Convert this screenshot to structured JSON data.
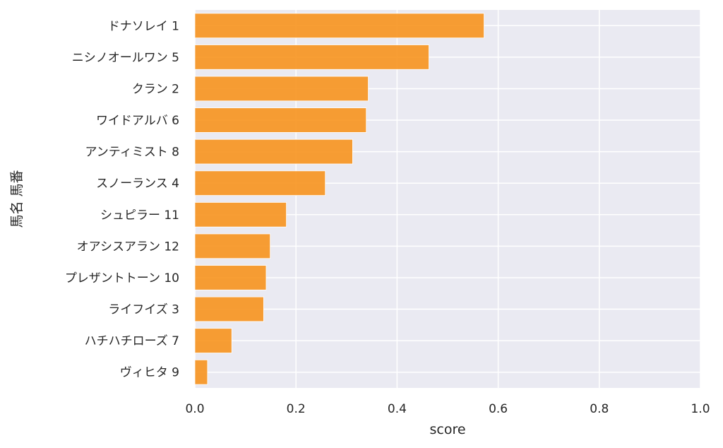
{
  "chart_data": {
    "type": "bar",
    "orientation": "horizontal",
    "xlabel": "score",
    "ylabel": "馬名 馬番",
    "xlim": [
      0.0,
      1.0
    ],
    "xticks": [
      "0.0",
      "0.2",
      "0.4",
      "0.6",
      "0.8",
      "1.0"
    ],
    "grid": true,
    "bar_color": "#f7931e",
    "background_color": "#eaeaf2",
    "categories": [
      "ドナソレイ 1",
      "ニシノオールワン 5",
      "クラン 2",
      "ワイドアルバ 6",
      "アンティミスト 8",
      "スノーランス 4",
      "シュピラー 11",
      "オアシスアラン 12",
      "プレザントトーン 10",
      "ライフイズ 3",
      "ハチハチローズ 7",
      "ヴィヒタ 9"
    ],
    "values": [
      0.572,
      0.463,
      0.343,
      0.339,
      0.312,
      0.258,
      0.181,
      0.149,
      0.141,
      0.136,
      0.073,
      0.025
    ]
  }
}
